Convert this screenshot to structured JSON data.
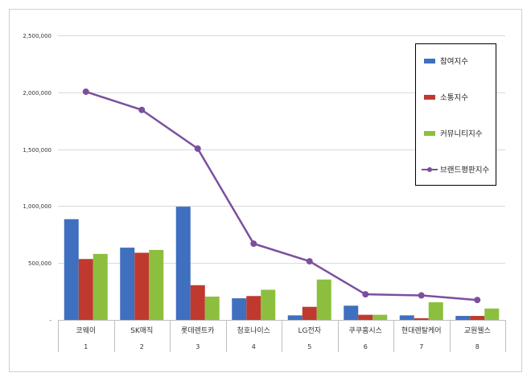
{
  "chart_data": {
    "type": "bar",
    "title": "",
    "xlabel": "",
    "ylabel": "",
    "ylim": [
      0,
      2500000
    ],
    "y_ticks": [
      {
        "value": 0,
        "label": "-"
      },
      {
        "value": 500000,
        "label": "500,000"
      },
      {
        "value": 1000000,
        "label": "1,000,000"
      },
      {
        "value": 1500000,
        "label": "1,500,000"
      },
      {
        "value": 2000000,
        "label": "2,000,000"
      },
      {
        "value": 2500000,
        "label": "2,500,000"
      }
    ],
    "grid": true,
    "legend_position": "top-right",
    "categories": [
      "코웨이",
      "SK매직",
      "롯데렌트카",
      "청호나이스",
      "LG전자",
      "쿠쿠홈시스",
      "현대렌탈케어",
      "교원웰스"
    ],
    "category_index": [
      "1",
      "2",
      "3",
      "4",
      "5",
      "6",
      "7",
      "8"
    ],
    "series": [
      {
        "name": "참여지수",
        "type": "bar",
        "color": "#3f6fbf",
        "values": [
          885000,
          635000,
          995000,
          190000,
          40000,
          125000,
          40000,
          35000
        ]
      },
      {
        "name": "소통지수",
        "type": "bar",
        "color": "#c0392f",
        "values": [
          535000,
          590000,
          305000,
          210000,
          115000,
          45000,
          15000,
          35000
        ]
      },
      {
        "name": "커뮤니티지수",
        "type": "bar",
        "color": "#8dbf3f",
        "values": [
          580000,
          615000,
          205000,
          265000,
          355000,
          45000,
          155000,
          100000
        ]
      },
      {
        "name": "브랜드평판지수",
        "type": "line",
        "color": "#7b4f9e",
        "values": [
          2005000,
          1845000,
          1505000,
          670000,
          515000,
          225000,
          215000,
          175000
        ]
      }
    ]
  }
}
